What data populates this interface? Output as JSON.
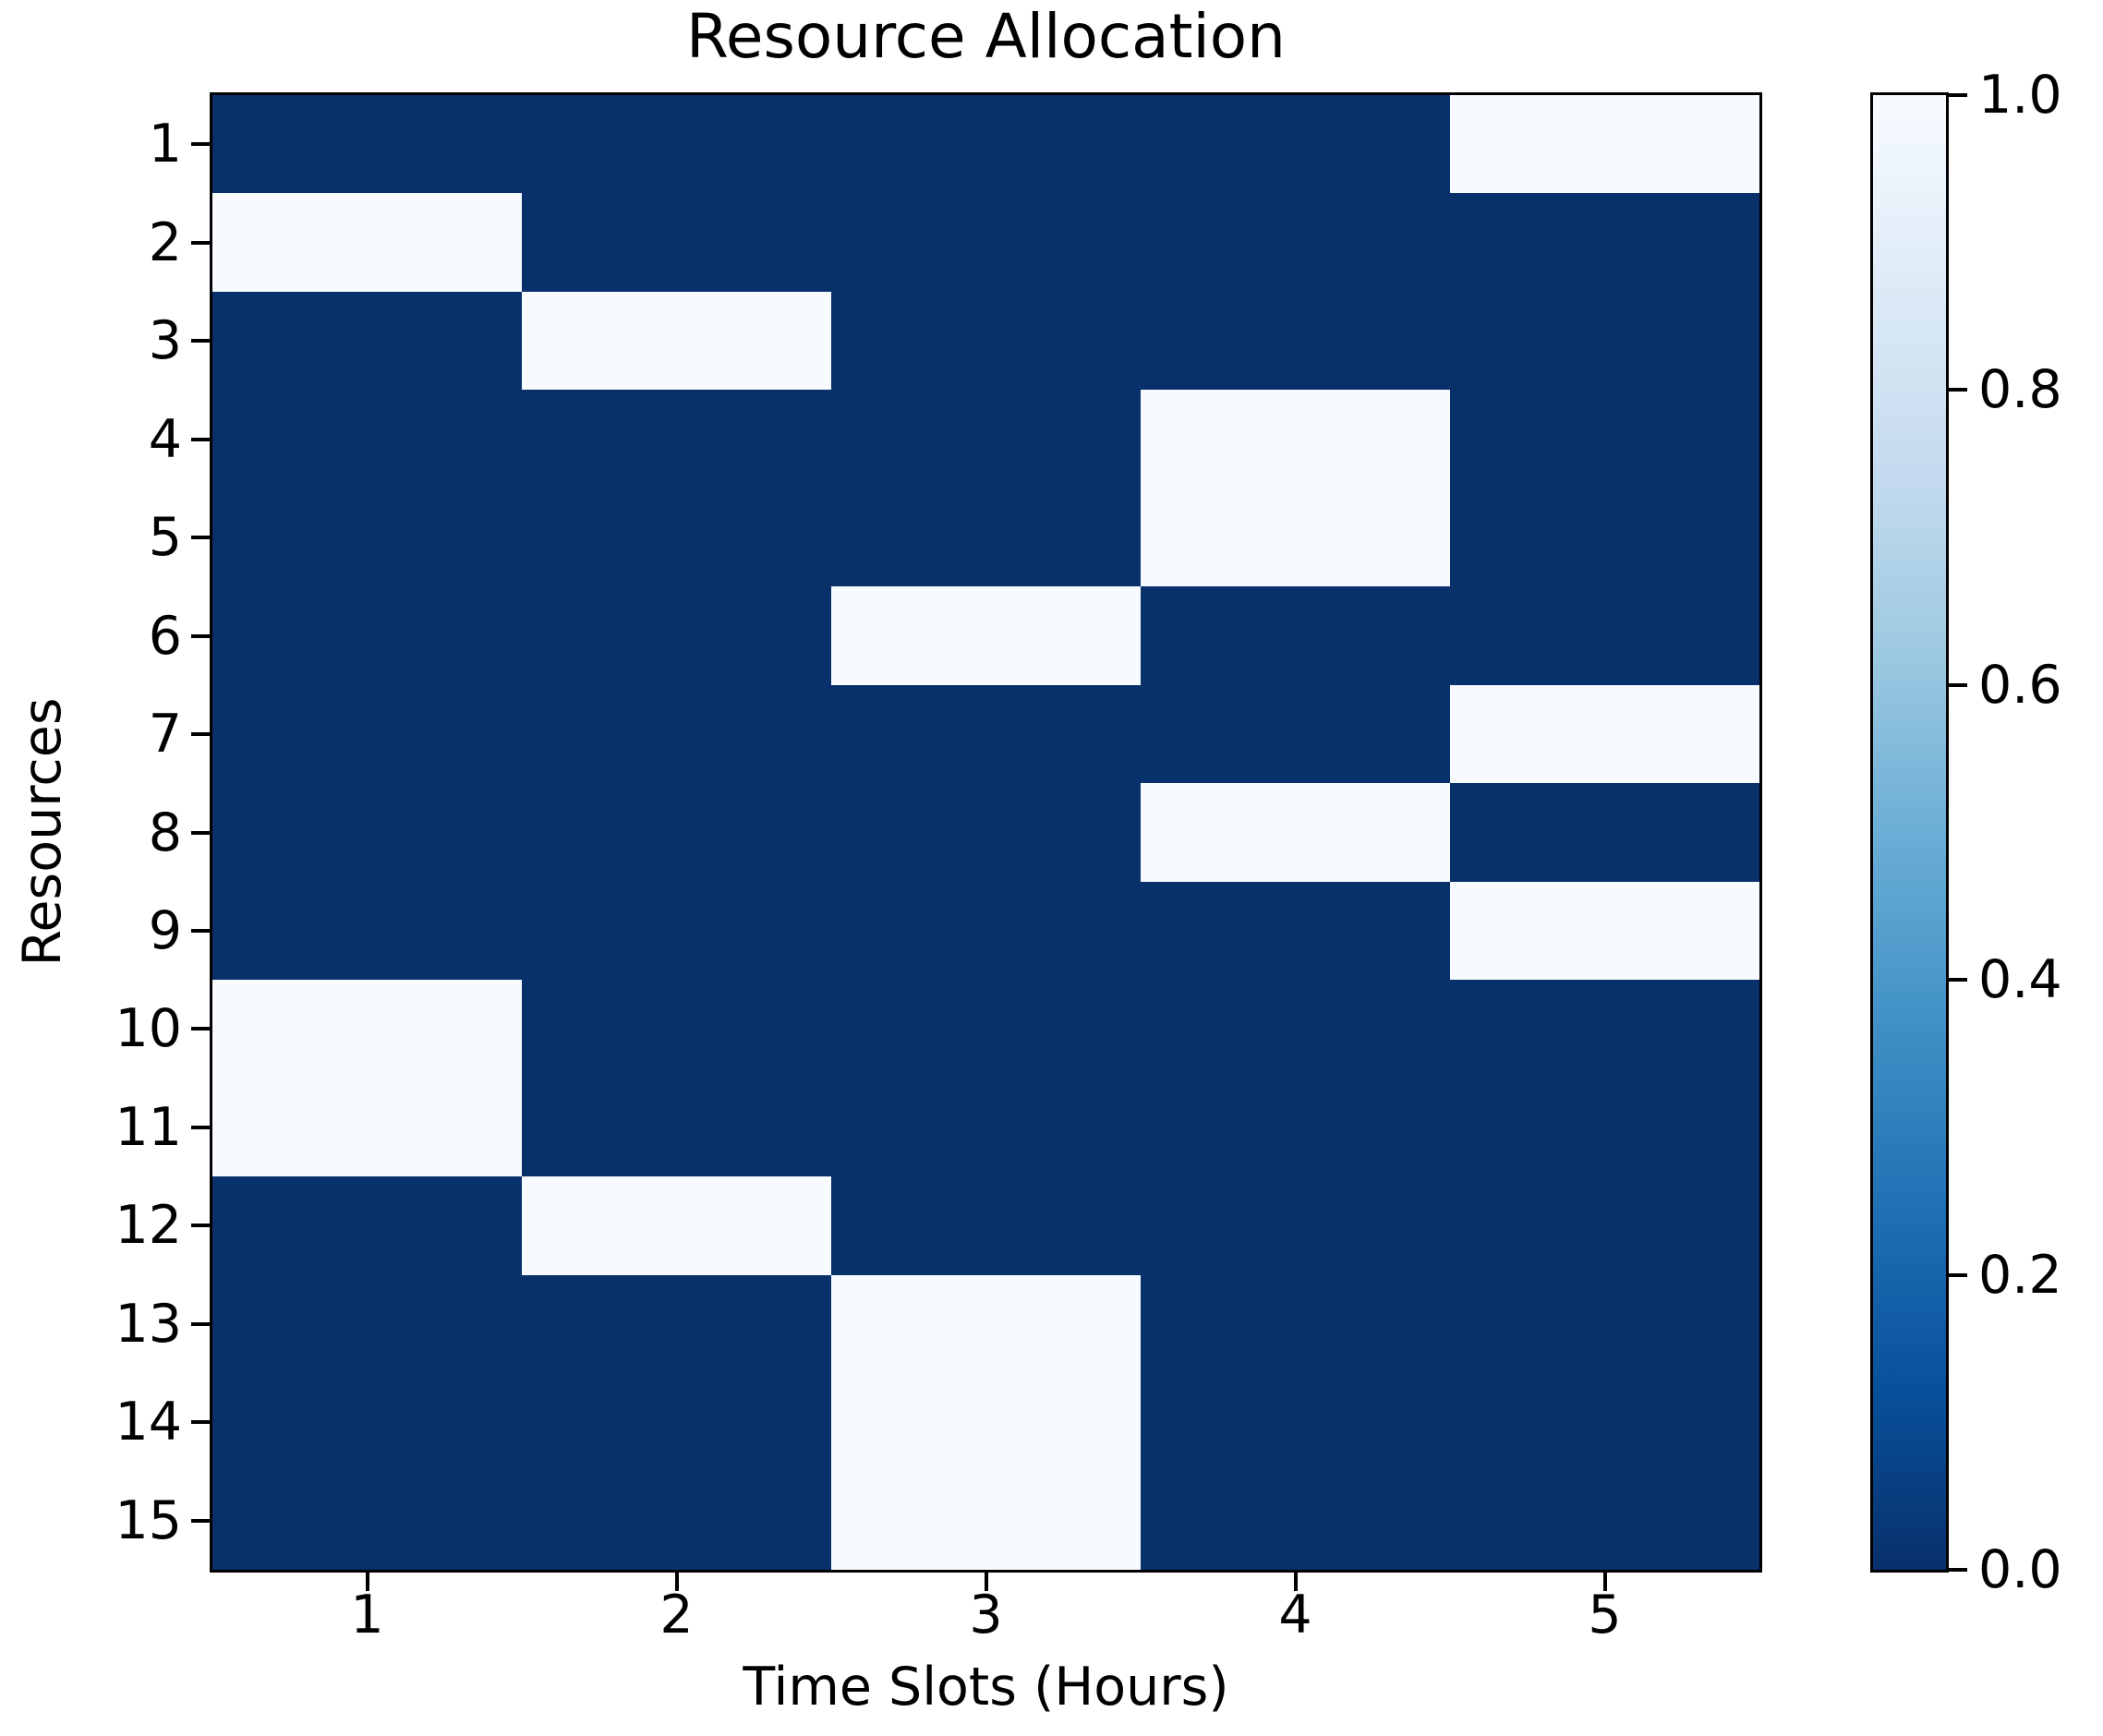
{
  "title": "Resource Allocation",
  "chart_data": {
    "type": "heatmap",
    "title": "Resource Allocation",
    "xlabel": "Time Slots (Hours)",
    "ylabel": "Resources",
    "x_ticks": [
      "1",
      "2",
      "3",
      "4",
      "5"
    ],
    "y_ticks": [
      "1",
      "2",
      "3",
      "4",
      "5",
      "6",
      "7",
      "8",
      "9",
      "10",
      "11",
      "12",
      "13",
      "14",
      "15"
    ],
    "matrix": [
      [
        0,
        0,
        0,
        0,
        1
      ],
      [
        1,
        0,
        0,
        0,
        0
      ],
      [
        0,
        1,
        0,
        0,
        0
      ],
      [
        0,
        0,
        0,
        1,
        0
      ],
      [
        0,
        0,
        0,
        1,
        0
      ],
      [
        0,
        0,
        1,
        0,
        0
      ],
      [
        0,
        0,
        0,
        0,
        1
      ],
      [
        0,
        0,
        0,
        1,
        0
      ],
      [
        0,
        0,
        0,
        0,
        1
      ],
      [
        1,
        0,
        0,
        0,
        0
      ],
      [
        1,
        0,
        0,
        0,
        0
      ],
      [
        0,
        1,
        0,
        0,
        0
      ],
      [
        0,
        0,
        1,
        0,
        0
      ],
      [
        0,
        0,
        1,
        0,
        0
      ],
      [
        0,
        0,
        1,
        0,
        0
      ]
    ],
    "value_range": [
      0,
      1
    ],
    "colorbar_ticks": [
      "1.0",
      "0.8",
      "0.6",
      "0.4",
      "0.2",
      "0.0"
    ],
    "colors": {
      "low": "#08306b",
      "high": "#f7fbff",
      "colorbar_stops_top_to_bottom": [
        "#f7fbff",
        "#deebf7",
        "#c6dbef",
        "#9ecae1",
        "#6baed6",
        "#4292c6",
        "#2171b5",
        "#08519c",
        "#08306b"
      ],
      "spine": "#000000",
      "background": "#ffffff"
    },
    "grid": false,
    "legend_position": "right-colorbar"
  }
}
